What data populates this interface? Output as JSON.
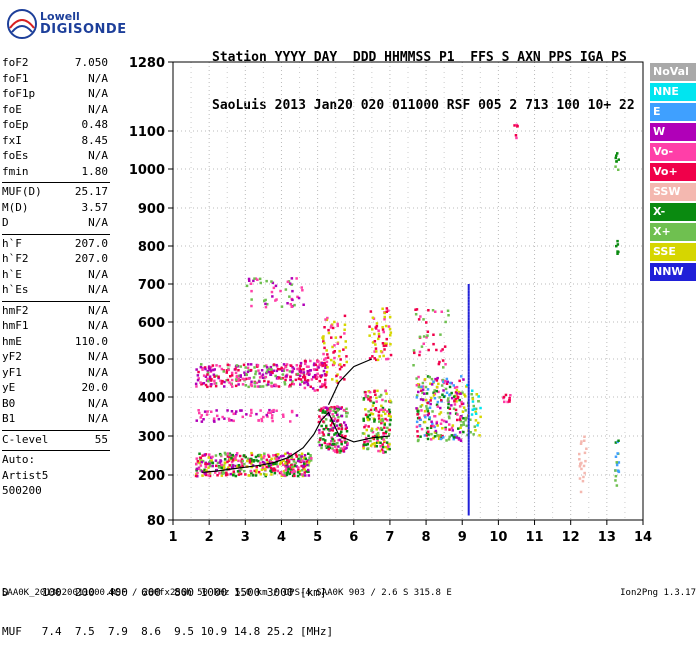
{
  "logo": {
    "line1": "Lowell",
    "line2": "DIGISONDE"
  },
  "header": {
    "line1": "Station YYYY DAY  DDD HHMMSS P1  FFS S AXN PPS IGA PS",
    "line2": "SaoLuis 2013 Jan20 020 011000 RSF 005 2 713 100 10+ 22"
  },
  "parameters": {
    "group1": [
      {
        "name": "foF2",
        "value": "7.050"
      },
      {
        "name": "foF1",
        "value": "N/A"
      },
      {
        "name": "foF1p",
        "value": "N/A"
      },
      {
        "name": "foE",
        "value": "N/A"
      },
      {
        "name": "foEp",
        "value": "0.48"
      },
      {
        "name": "fxI",
        "value": "8.45"
      },
      {
        "name": "foEs",
        "value": "N/A"
      },
      {
        "name": "fmin",
        "value": "1.80"
      }
    ],
    "group2": [
      {
        "name": "MUF(D)",
        "value": "25.17"
      },
      {
        "name": "M(D)",
        "value": "3.57"
      },
      {
        "name": "D",
        "value": "N/A"
      }
    ],
    "group3": [
      {
        "name": "h`F",
        "value": "207.0"
      },
      {
        "name": "h`F2",
        "value": "207.0"
      },
      {
        "name": "h`E",
        "value": "N/A"
      },
      {
        "name": "h`Es",
        "value": "N/A"
      }
    ],
    "group4": [
      {
        "name": "hmF2",
        "value": "N/A"
      },
      {
        "name": "hmF1",
        "value": "N/A"
      },
      {
        "name": "hmE",
        "value": "110.0"
      },
      {
        "name": "yF2",
        "value": "N/A"
      },
      {
        "name": "yF1",
        "value": "N/A"
      },
      {
        "name": "yE",
        "value": "20.0"
      },
      {
        "name": "B0",
        "value": "N/A"
      },
      {
        "name": "B1",
        "value": "N/A"
      }
    ],
    "clevel": {
      "name": "C-level",
      "value": "55"
    },
    "auto": [
      "Auto:",
      "Artist5",
      "500200"
    ]
  },
  "legend": [
    {
      "label": "NoVal",
      "color": "#a9a9a9"
    },
    {
      "label": "NNE",
      "color": "#00e5f0"
    },
    {
      "label": "E",
      "color": "#3fa0ff"
    },
    {
      "label": "W",
      "color": "#b000b8"
    },
    {
      "label": "Vo-",
      "color": "#ff3fa8"
    },
    {
      "label": "Vo+",
      "color": "#f0004a"
    },
    {
      "label": "SSW",
      "color": "#f4b8b0"
    },
    {
      "label": "X-",
      "color": "#0a8a10"
    },
    {
      "label": "X+",
      "color": "#6fc050"
    },
    {
      "label": "SSE",
      "color": "#d6d600"
    },
    {
      "label": "NNW",
      "color": "#2020d8"
    }
  ],
  "footer": {
    "line1": "D     100  200  400  600  800 1000 1500 3000 [km]",
    "line2": "MUF   7.4  7.5  7.9  8.6  9.5 10.9 14.8 25.2 [MHz]",
    "line3": "SAA0K_2013020011000.RSF / 260fx256h 50 kHz 5.0 km / DPS-4 SAA0K 903 / 2.6 S 315.8 E",
    "version": "Ion2Png 1.3.17"
  },
  "chart_data": {
    "type": "scatter",
    "x_ticks": [
      "1",
      "2",
      "3",
      "4",
      "5",
      "6",
      "7",
      "8",
      "9",
      "10",
      "11",
      "12",
      "13",
      "14"
    ],
    "y_ticks": [
      "80",
      "200",
      "300",
      "400",
      "500",
      "600",
      "700",
      "800",
      "900",
      "1000",
      "1100",
      "1280"
    ],
    "xlim": [
      1,
      14
    ],
    "ylim": [
      80,
      1280
    ],
    "grid": true,
    "trace": {
      "x": [
        1.8,
        2.2,
        2.6,
        3.0,
        3.4,
        3.8,
        4.2,
        4.6,
        4.9,
        5.1,
        5.3,
        5.6,
        6.0,
        6.5,
        7.0
      ],
      "y": [
        207,
        210,
        215,
        220,
        225,
        232,
        245,
        270,
        305,
        340,
        360,
        300,
        285,
        295,
        300
      ]
    },
    "trace_f2_upper": {
      "x": [
        5.3,
        5.6,
        6.0,
        6.5
      ],
      "y": [
        380,
        440,
        480,
        500
      ]
    },
    "clusters": [
      {
        "x": [
          1.6,
          4.8
        ],
        "y": [
          200,
          260
        ],
        "n": 420,
        "colors": [
          "#f0004a",
          "#ff3fa8",
          "#b000b8",
          "#0a8a10",
          "#6fc050",
          "#d6d600"
        ]
      },
      {
        "x": [
          1.6,
          4.6
        ],
        "y": [
          430,
          490
        ],
        "n": 260,
        "colors": [
          "#ff3fa8",
          "#b000b8",
          "#6fc050",
          "#f0004a"
        ]
      },
      {
        "x": [
          1.6,
          4.4
        ],
        "y": [
          340,
          370
        ],
        "n": 60,
        "colors": [
          "#b000b8",
          "#ff3fa8"
        ]
      },
      {
        "x": [
          3.0,
          4.6
        ],
        "y": [
          640,
          720
        ],
        "n": 50,
        "colors": [
          "#b000b8",
          "#ff3fa8",
          "#6fc050"
        ]
      },
      {
        "x": [
          4.4,
          5.2
        ],
        "y": [
          420,
          500
        ],
        "n": 90,
        "colors": [
          "#b000b8",
          "#f0004a",
          "#ff3fa8"
        ]
      },
      {
        "x": [
          5.0,
          5.8
        ],
        "y": [
          260,
          380
        ],
        "n": 170,
        "colors": [
          "#f0004a",
          "#ff3fa8",
          "#b000b8",
          "#6fc050",
          "#0a8a10"
        ]
      },
      {
        "x": [
          5.1,
          5.8
        ],
        "y": [
          440,
          620
        ],
        "n": 70,
        "colors": [
          "#f0004a",
          "#ff3fa8",
          "#d6d600"
        ]
      },
      {
        "x": [
          6.2,
          7.0
        ],
        "y": [
          260,
          420
        ],
        "n": 170,
        "colors": [
          "#f0004a",
          "#ff3fa8",
          "#0a8a10",
          "#6fc050",
          "#d6d600"
        ]
      },
      {
        "x": [
          6.4,
          7.0
        ],
        "y": [
          500,
          640
        ],
        "n": 60,
        "colors": [
          "#f0004a",
          "#ff3fa8",
          "#d6d600"
        ]
      },
      {
        "x": [
          7.7,
          9.0
        ],
        "y": [
          290,
          460
        ],
        "n": 240,
        "colors": [
          "#f0004a",
          "#ff3fa8",
          "#3fa0ff",
          "#6fc050",
          "#d6d600",
          "#b000b8",
          "#0a8a10"
        ]
      },
      {
        "x": [
          7.6,
          8.6
        ],
        "y": [
          480,
          640
        ],
        "n": 40,
        "colors": [
          "#ff3fa8",
          "#f0004a",
          "#6fc050"
        ]
      },
      {
        "x": [
          9.0,
          9.5
        ],
        "y": [
          300,
          440
        ],
        "n": 45,
        "colors": [
          "#00e5f0",
          "#6fc050",
          "#d6d600"
        ]
      },
      {
        "x": [
          10.1,
          10.3
        ],
        "y": [
          390,
          410
        ],
        "n": 10,
        "colors": [
          "#f0004a",
          "#ff3fa8"
        ]
      },
      {
        "x": [
          12.2,
          12.4
        ],
        "y": [
          150,
          330
        ],
        "n": 20,
        "colors": [
          "#f4b8b0"
        ]
      },
      {
        "x": [
          13.2,
          13.3
        ],
        "y": [
          170,
          300
        ],
        "n": 18,
        "colors": [
          "#6fc050",
          "#0a8a10",
          "#3fa0ff"
        ]
      },
      {
        "x": [
          13.2,
          13.3
        ],
        "y": [
          1000,
          1050
        ],
        "n": 8,
        "colors": [
          "#0a8a10",
          "#6fc050"
        ]
      },
      {
        "x": [
          13.2,
          13.3
        ],
        "y": [
          780,
          820
        ],
        "n": 6,
        "colors": [
          "#0a8a10"
        ]
      },
      {
        "x": [
          10.4,
          10.5
        ],
        "y": [
          1080,
          1140
        ],
        "n": 6,
        "colors": [
          "#f0004a",
          "#ff3fa8"
        ]
      }
    ],
    "nnw_column": {
      "x": 9.15,
      "y": [
        100,
        700
      ]
    }
  }
}
